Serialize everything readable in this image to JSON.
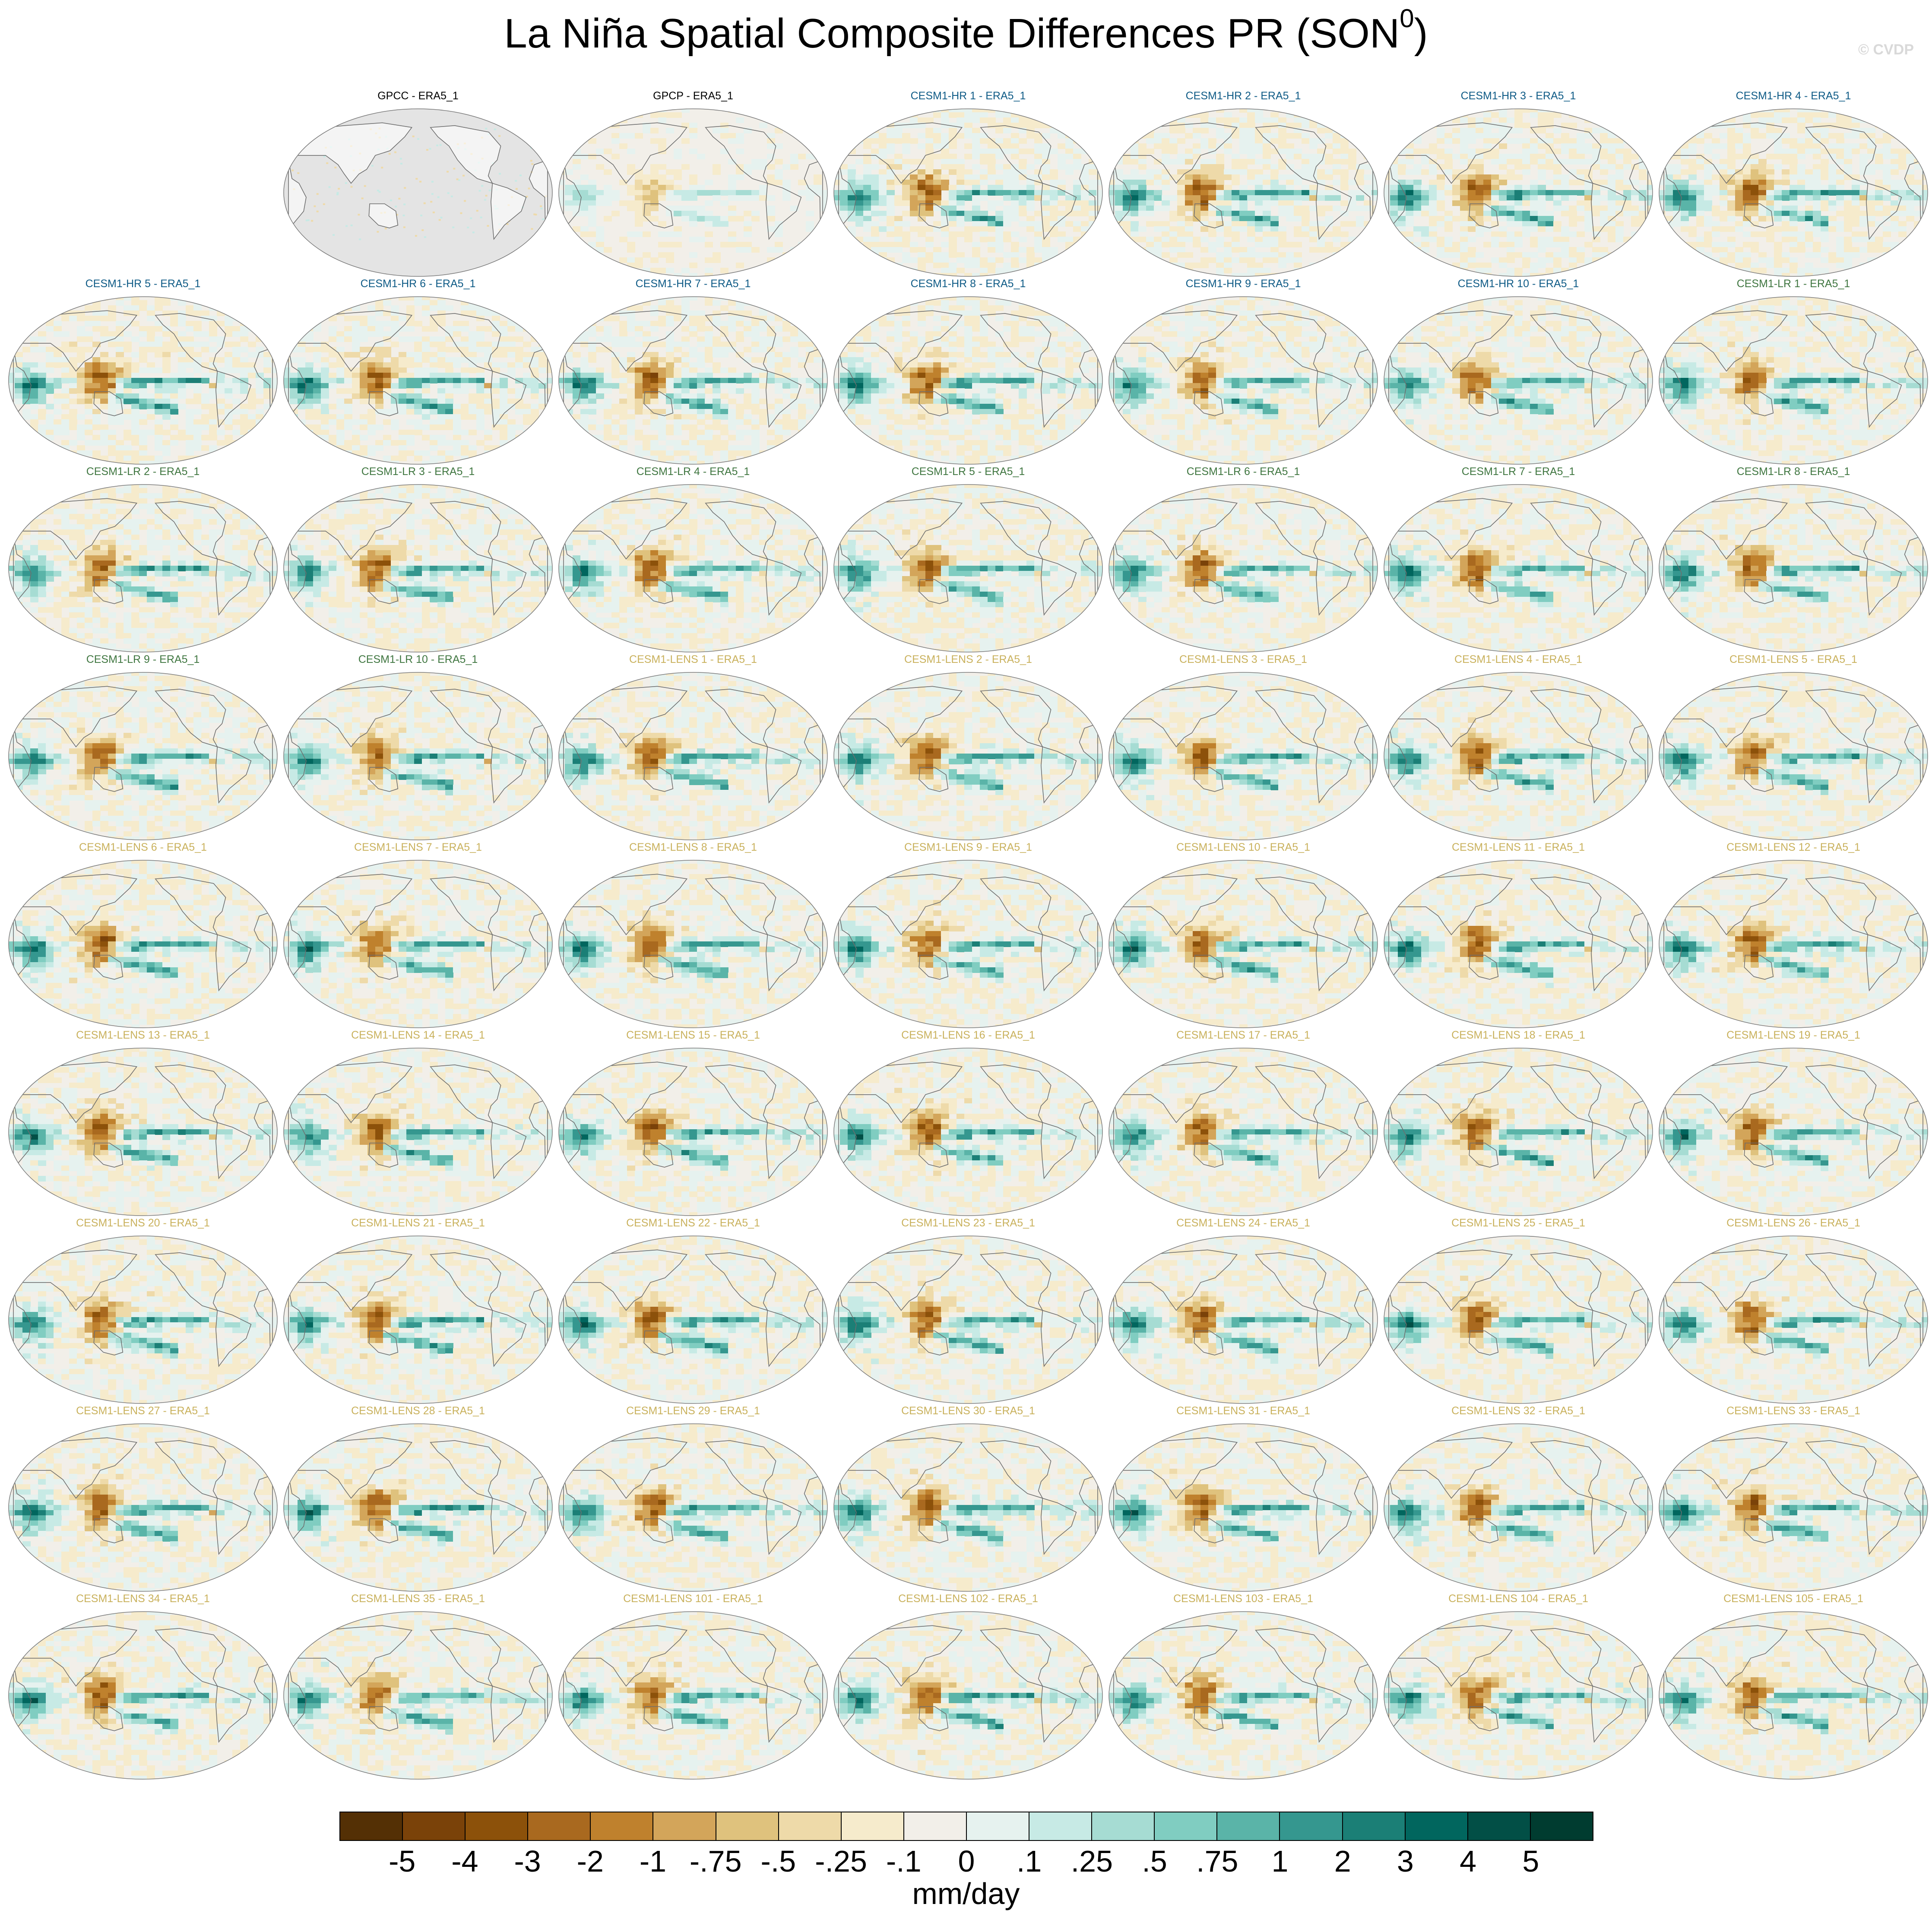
{
  "title": "La Niña Spatial Composite Differences PR (SON",
  "title_superscript": "0",
  "title_close": ")",
  "watermark": "© CVDP",
  "chart_data": {
    "type": "heatmap",
    "layout": "7 columns x 9 rows of global map panels; first cell of row 1 empty",
    "projection": "Robinson-like global map, Pacific centered",
    "panels": [
      {
        "title": "GPCC - ERA5_1",
        "group": "obs",
        "pattern": "land-only",
        "seed": 1
      },
      {
        "title": "GPCP - ERA5_1",
        "group": "obs",
        "pattern": "weak",
        "seed": 2
      },
      {
        "title": "CESM1-HR 1 - ERA5_1",
        "group": "hr",
        "pattern": "model",
        "seed": 3
      },
      {
        "title": "CESM1-HR 2 - ERA5_1",
        "group": "hr",
        "pattern": "model",
        "seed": 4
      },
      {
        "title": "CESM1-HR 3 - ERA5_1",
        "group": "hr",
        "pattern": "model",
        "seed": 5
      },
      {
        "title": "CESM1-HR 4 - ERA5_1",
        "group": "hr",
        "pattern": "model",
        "seed": 6
      },
      {
        "title": "CESM1-HR 5 - ERA5_1",
        "group": "hr",
        "pattern": "model",
        "seed": 7
      },
      {
        "title": "CESM1-HR 6 - ERA5_1",
        "group": "hr",
        "pattern": "model",
        "seed": 8
      },
      {
        "title": "CESM1-HR 7 - ERA5_1",
        "group": "hr",
        "pattern": "model",
        "seed": 9
      },
      {
        "title": "CESM1-HR 8 - ERA5_1",
        "group": "hr",
        "pattern": "model",
        "seed": 10
      },
      {
        "title": "CESM1-HR 9 - ERA5_1",
        "group": "hr",
        "pattern": "model",
        "seed": 11
      },
      {
        "title": "CESM1-HR 10 - ERA5_1",
        "group": "hr",
        "pattern": "model",
        "seed": 12
      },
      {
        "title": "CESM1-LR 1 - ERA5_1",
        "group": "lr",
        "pattern": "model",
        "seed": 13
      },
      {
        "title": "CESM1-LR 2 - ERA5_1",
        "group": "lr",
        "pattern": "model",
        "seed": 14
      },
      {
        "title": "CESM1-LR 3 - ERA5_1",
        "group": "lr",
        "pattern": "model",
        "seed": 15
      },
      {
        "title": "CESM1-LR 4 - ERA5_1",
        "group": "lr",
        "pattern": "model",
        "seed": 16
      },
      {
        "title": "CESM1-LR 5 - ERA5_1",
        "group": "lr",
        "pattern": "model",
        "seed": 17
      },
      {
        "title": "CESM1-LR 6 - ERA5_1",
        "group": "lr",
        "pattern": "model",
        "seed": 18
      },
      {
        "title": "CESM1-LR 7 - ERA5_1",
        "group": "lr",
        "pattern": "model",
        "seed": 19
      },
      {
        "title": "CESM1-LR 8 - ERA5_1",
        "group": "lr",
        "pattern": "model",
        "seed": 20
      },
      {
        "title": "CESM1-LR 9 - ERA5_1",
        "group": "lr",
        "pattern": "model",
        "seed": 21
      },
      {
        "title": "CESM1-LR 10 - ERA5_1",
        "group": "lr",
        "pattern": "model",
        "seed": 22
      },
      {
        "title": "CESM1-LENS 1 - ERA5_1",
        "group": "lens",
        "pattern": "model",
        "seed": 23
      },
      {
        "title": "CESM1-LENS 2 - ERA5_1",
        "group": "lens",
        "pattern": "model",
        "seed": 24
      },
      {
        "title": "CESM1-LENS 3 - ERA5_1",
        "group": "lens",
        "pattern": "model",
        "seed": 25
      },
      {
        "title": "CESM1-LENS 4 - ERA5_1",
        "group": "lens",
        "pattern": "model",
        "seed": 26
      },
      {
        "title": "CESM1-LENS 5 - ERA5_1",
        "group": "lens",
        "pattern": "model",
        "seed": 27
      },
      {
        "title": "CESM1-LENS 6 - ERA5_1",
        "group": "lens",
        "pattern": "model",
        "seed": 28
      },
      {
        "title": "CESM1-LENS 7 - ERA5_1",
        "group": "lens",
        "pattern": "model",
        "seed": 29
      },
      {
        "title": "CESM1-LENS 8 - ERA5_1",
        "group": "lens",
        "pattern": "model",
        "seed": 30
      },
      {
        "title": "CESM1-LENS 9 - ERA5_1",
        "group": "lens",
        "pattern": "model",
        "seed": 31
      },
      {
        "title": "CESM1-LENS 10 - ERA5_1",
        "group": "lens",
        "pattern": "model",
        "seed": 32
      },
      {
        "title": "CESM1-LENS 11 - ERA5_1",
        "group": "lens",
        "pattern": "model",
        "seed": 33
      },
      {
        "title": "CESM1-LENS 12 - ERA5_1",
        "group": "lens",
        "pattern": "model",
        "seed": 34
      },
      {
        "title": "CESM1-LENS 13 - ERA5_1",
        "group": "lens",
        "pattern": "model",
        "seed": 35
      },
      {
        "title": "CESM1-LENS 14 - ERA5_1",
        "group": "lens",
        "pattern": "model",
        "seed": 36
      },
      {
        "title": "CESM1-LENS 15 - ERA5_1",
        "group": "lens",
        "pattern": "model",
        "seed": 37
      },
      {
        "title": "CESM1-LENS 16 - ERA5_1",
        "group": "lens",
        "pattern": "model",
        "seed": 38
      },
      {
        "title": "CESM1-LENS 17 - ERA5_1",
        "group": "lens",
        "pattern": "model",
        "seed": 39
      },
      {
        "title": "CESM1-LENS 18 - ERA5_1",
        "group": "lens",
        "pattern": "model",
        "seed": 40
      },
      {
        "title": "CESM1-LENS 19 - ERA5_1",
        "group": "lens",
        "pattern": "model",
        "seed": 41
      },
      {
        "title": "CESM1-LENS 20 - ERA5_1",
        "group": "lens",
        "pattern": "model",
        "seed": 42
      },
      {
        "title": "CESM1-LENS 21 - ERA5_1",
        "group": "lens",
        "pattern": "model",
        "seed": 43
      },
      {
        "title": "CESM1-LENS 22 - ERA5_1",
        "group": "lens",
        "pattern": "model",
        "seed": 44
      },
      {
        "title": "CESM1-LENS 23 - ERA5_1",
        "group": "lens",
        "pattern": "model",
        "seed": 45
      },
      {
        "title": "CESM1-LENS 24 - ERA5_1",
        "group": "lens",
        "pattern": "model",
        "seed": 46
      },
      {
        "title": "CESM1-LENS 25 - ERA5_1",
        "group": "lens",
        "pattern": "model",
        "seed": 47
      },
      {
        "title": "CESM1-LENS 26 - ERA5_1",
        "group": "lens",
        "pattern": "model",
        "seed": 48
      },
      {
        "title": "CESM1-LENS 27 - ERA5_1",
        "group": "lens",
        "pattern": "model",
        "seed": 49
      },
      {
        "title": "CESM1-LENS 28 - ERA5_1",
        "group": "lens",
        "pattern": "model",
        "seed": 50
      },
      {
        "title": "CESM1-LENS 29 - ERA5_1",
        "group": "lens",
        "pattern": "model",
        "seed": 51
      },
      {
        "title": "CESM1-LENS 30 - ERA5_1",
        "group": "lens",
        "pattern": "model",
        "seed": 52
      },
      {
        "title": "CESM1-LENS 31 - ERA5_1",
        "group": "lens",
        "pattern": "model",
        "seed": 53
      },
      {
        "title": "CESM1-LENS 32 - ERA5_1",
        "group": "lens",
        "pattern": "model",
        "seed": 54
      },
      {
        "title": "CESM1-LENS 33 - ERA5_1",
        "group": "lens",
        "pattern": "model",
        "seed": 55
      },
      {
        "title": "CESM1-LENS 34 - ERA5_1",
        "group": "lens",
        "pattern": "model",
        "seed": 56
      },
      {
        "title": "CESM1-LENS 35 - ERA5_1",
        "group": "lens",
        "pattern": "model",
        "seed": 57
      },
      {
        "title": "CESM1-LENS 101 - ERA5_1",
        "group": "lens",
        "pattern": "model",
        "seed": 58
      },
      {
        "title": "CESM1-LENS 102 - ERA5_1",
        "group": "lens",
        "pattern": "model",
        "seed": 59
      },
      {
        "title": "CESM1-LENS 103 - ERA5_1",
        "group": "lens",
        "pattern": "model",
        "seed": 60
      },
      {
        "title": "CESM1-LENS 104 - ERA5_1",
        "group": "lens",
        "pattern": "model",
        "seed": 61
      },
      {
        "title": "CESM1-LENS 105 - ERA5_1",
        "group": "lens",
        "pattern": "model",
        "seed": 62
      }
    ],
    "group_title_colors": {
      "obs": "#000000",
      "hr": "#0f5b86",
      "lr": "#3f7640",
      "lens": "#c9b15c"
    },
    "colorbar": {
      "levels": [
        "-5",
        "-4",
        "-3",
        "-2",
        "-1",
        "-.75",
        "-.5",
        "-.25",
        "-.1",
        "0",
        ".1",
        ".25",
        ".5",
        ".75",
        "1",
        "2",
        "3",
        "4",
        "5"
      ],
      "colors": [
        "#543005",
        "#7a4209",
        "#8c510a",
        "#a9691f",
        "#bf812d",
        "#d3a55a",
        "#dfc27d",
        "#eedaa9",
        "#f6ebcc",
        "#f2efe9",
        "#e6f2ef",
        "#c7eae5",
        "#a6dcd3",
        "#80cdc1",
        "#5ab4a8",
        "#35978f",
        "#1b7f76",
        "#01665e",
        "#024f46",
        "#003c30"
      ],
      "units": "mm/day"
    }
  }
}
